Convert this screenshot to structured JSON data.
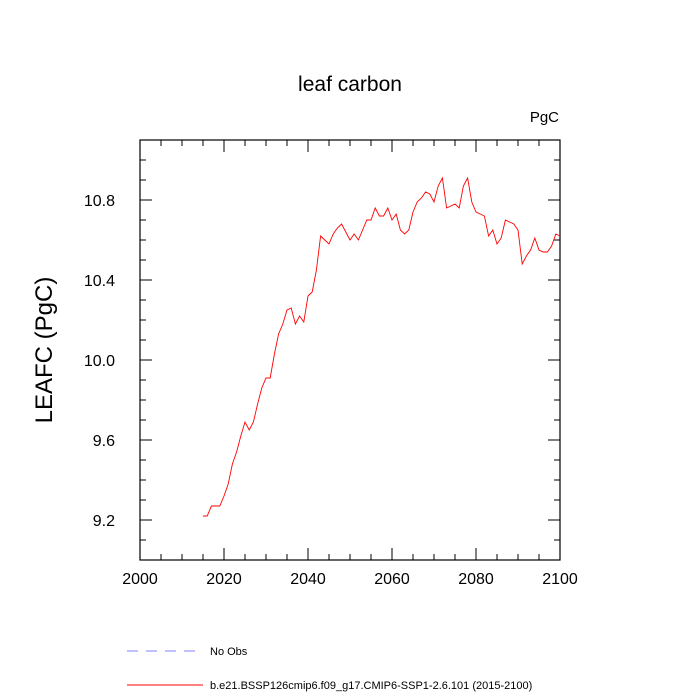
{
  "chart_data": {
    "type": "line",
    "title": "leaf carbon",
    "units": "PgC",
    "ylabel": "LEAFC  (PgC)",
    "xlabel": "",
    "xlim": [
      2000,
      2100
    ],
    "ylim": [
      9.0,
      11.1
    ],
    "x_ticks": [
      2000,
      2020,
      2040,
      2060,
      2080,
      2100
    ],
    "x_tick_labels": [
      "2000",
      "2020",
      "2040",
      "2060",
      "2080",
      "2100"
    ],
    "y_ticks": [
      9.2,
      9.6,
      10.0,
      10.4,
      10.8
    ],
    "y_tick_labels": [
      "9.2",
      "9.6",
      "10.0",
      "10.4",
      "10.8"
    ],
    "series": [
      {
        "name": "b.e21.BSSP126cmip6.f09_g17.CMIP6-SSP1-2.6.101 (2015-2100)",
        "color": "#ff0000",
        "style": "solid",
        "x": [
          2015,
          2016,
          2017,
          2018,
          2019,
          2020,
          2021,
          2022,
          2023,
          2024,
          2025,
          2026,
          2027,
          2028,
          2029,
          2030,
          2031,
          2032,
          2033,
          2034,
          2035,
          2036,
          2037,
          2038,
          2039,
          2040,
          2041,
          2042,
          2043,
          2044,
          2045,
          2046,
          2047,
          2048,
          2049,
          2050,
          2051,
          2052,
          2053,
          2054,
          2055,
          2056,
          2057,
          2058,
          2059,
          2060,
          2061,
          2062,
          2063,
          2064,
          2065,
          2066,
          2067,
          2068,
          2069,
          2070,
          2071,
          2072,
          2073,
          2074,
          2075,
          2076,
          2077,
          2078,
          2079,
          2080,
          2081,
          2082,
          2083,
          2084,
          2085,
          2086,
          2087,
          2088,
          2089,
          2090,
          2091,
          2092,
          2093,
          2094,
          2095,
          2096,
          2097,
          2098,
          2099,
          2100
        ],
        "values": [
          9.22,
          9.22,
          9.27,
          9.27,
          9.27,
          9.32,
          9.38,
          9.48,
          9.54,
          9.62,
          9.69,
          9.65,
          9.69,
          9.78,
          9.86,
          9.91,
          9.91,
          10.03,
          10.13,
          10.18,
          10.25,
          10.26,
          10.18,
          10.22,
          10.19,
          10.32,
          10.34,
          10.45,
          10.62,
          10.6,
          10.58,
          10.63,
          10.66,
          10.68,
          10.64,
          10.6,
          10.63,
          10.6,
          10.65,
          10.7,
          10.7,
          10.76,
          10.72,
          10.72,
          10.76,
          10.7,
          10.73,
          10.65,
          10.63,
          10.65,
          10.74,
          10.79,
          10.81,
          10.84,
          10.83,
          10.79,
          10.87,
          10.91,
          10.76,
          10.77,
          10.78,
          10.76,
          10.87,
          10.91,
          10.79,
          10.74,
          10.73,
          10.72,
          10.62,
          10.65,
          10.58,
          10.61,
          10.7,
          10.69,
          10.68,
          10.65,
          10.48,
          10.52,
          10.55,
          10.61,
          10.55,
          10.54,
          10.54,
          10.57,
          10.63,
          10.62
        ]
      },
      {
        "name": "No Obs",
        "color": "#8080ff",
        "style": "dashed",
        "x": [],
        "values": []
      }
    ],
    "legend_placement": "bottom-left, below plot"
  }
}
